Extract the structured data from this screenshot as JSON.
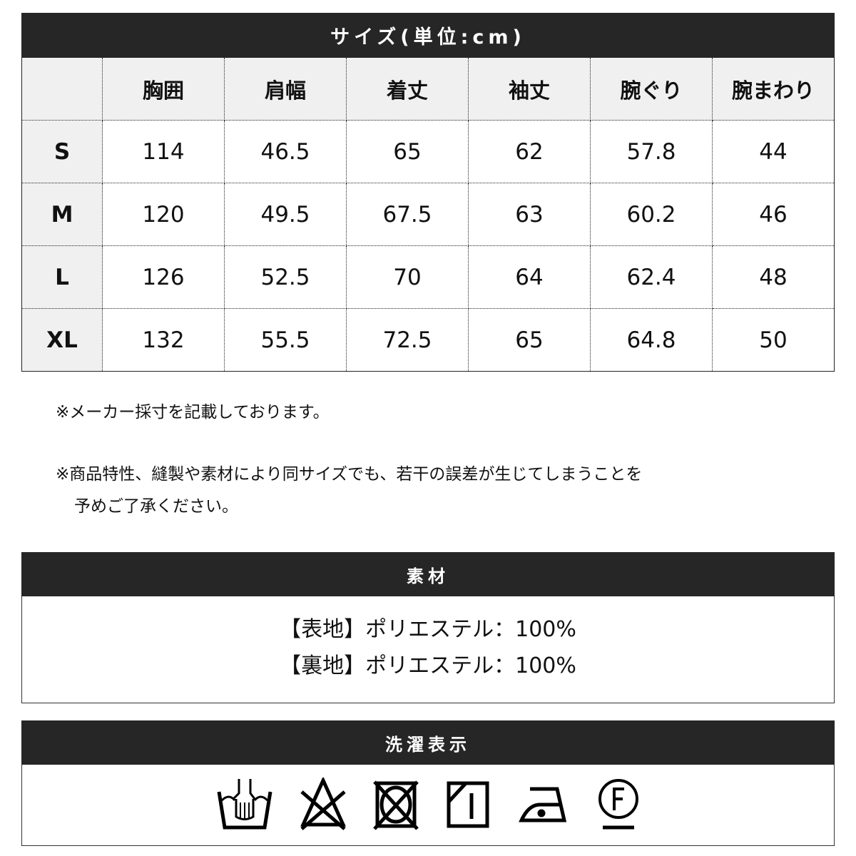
{
  "size_table": {
    "title": "サイズ(単位:cm)",
    "columns": [
      "",
      "胸囲",
      "肩幅",
      "着丈",
      "袖丈",
      "腕ぐり",
      "腕まわり"
    ],
    "rows": [
      {
        "size": "S",
        "values": [
          "114",
          "46.5",
          "65",
          "62",
          "57.8",
          "44"
        ]
      },
      {
        "size": "M",
        "values": [
          "120",
          "49.5",
          "67.5",
          "63",
          "60.2",
          "46"
        ]
      },
      {
        "size": "L",
        "values": [
          "126",
          "52.5",
          "70",
          "64",
          "62.4",
          "48"
        ]
      },
      {
        "size": "XL",
        "values": [
          "132",
          "55.5",
          "72.5",
          "65",
          "64.8",
          "50"
        ]
      }
    ]
  },
  "notes": [
    "※メーカー採寸を記載しております。",
    "※商品特性、縫製や素材により同サイズでも、若干の誤差が生じてしまうことを",
    "予めご了承ください。"
  ],
  "material": {
    "title": "素材",
    "lines": [
      "【表地】ポリエステル：100%",
      "【裏地】ポリエステル：100%"
    ]
  },
  "care": {
    "title": "洗濯表示",
    "icons": [
      "hand-wash-icon",
      "no-bleach-icon",
      "no-tumble-dry-icon",
      "line-dry-shade-icon",
      "iron-low-icon",
      "dry-clean-f-icon"
    ]
  },
  "colors": {
    "header_bar": "#262626",
    "header_cell": "#f0f0f0"
  }
}
